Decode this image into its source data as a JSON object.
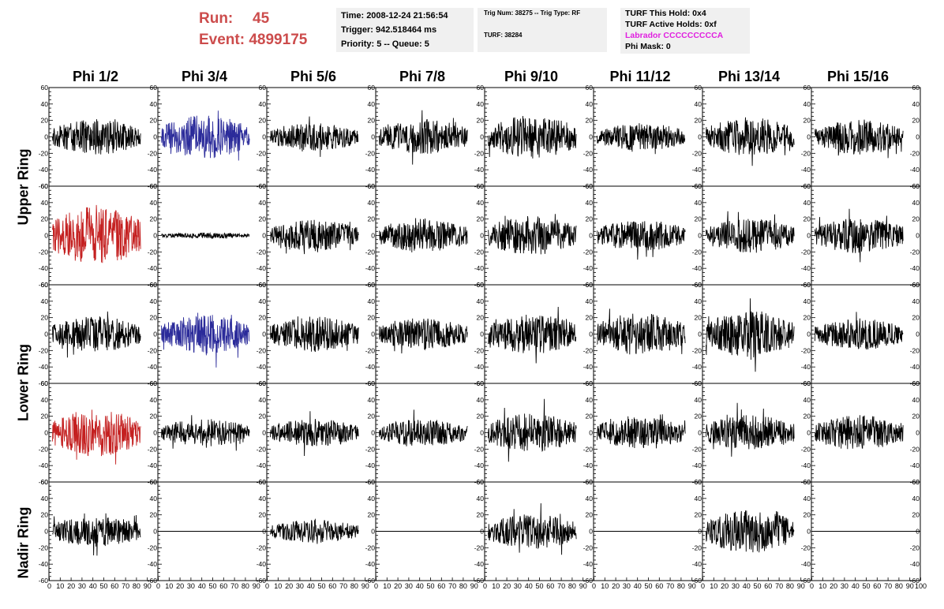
{
  "run": {
    "run_label": "Run:",
    "run_value": "45",
    "event_label": "Event:",
    "event_value": "4899175"
  },
  "info_time": {
    "time": "Time: 2008-12-24 21:56:54",
    "trigger": "Trigger: 942.518464 ms",
    "priority": "Priority: 5 -- Queue: 5"
  },
  "info_trig": {
    "line1": "Trig Num: 38275 -- Trig Type: RF",
    "line2": "TURF: 38284"
  },
  "info_turf": {
    "hold": "TURF This Hold: 0x4",
    "active": "TURF Active Holds: 0xf",
    "labrador": "Labrador CCCCCCCCCA",
    "phimask": "Phi Mask: 0"
  },
  "colors": {
    "black": "#000000",
    "blue": "#2b2b9a",
    "red": "#c42020",
    "labrador": "#e020e0",
    "run_text": "#cc4c4c"
  },
  "chart_data": {
    "type": "line",
    "x_range": [
      0,
      100
    ],
    "y_range": [
      -60,
      60
    ],
    "y_ticks": [
      "60",
      "40",
      "20",
      "0",
      "-20",
      "-40",
      "-60"
    ],
    "x_ticks": [
      "0",
      "10",
      "20",
      "30",
      "40",
      "50",
      "60",
      "70",
      "80",
      "90",
      "100"
    ],
    "columns": [
      "Phi 1/2",
      "Phi 3/4",
      "Phi 5/6",
      "Phi 7/8",
      "Phi 9/10",
      "Phi 11/12",
      "Phi 13/14",
      "Phi 15/16"
    ],
    "rings": [
      "Upper Ring",
      "Lower Ring",
      "Nadir Ring"
    ],
    "rows": [
      {
        "ring": "Upper Ring",
        "panels": [
          {
            "color": "black",
            "amplitude": 18,
            "seed": 11
          },
          {
            "color": "blue",
            "amplitude": 22,
            "seed": 12
          },
          {
            "color": "black",
            "amplitude": 14,
            "seed": 13
          },
          {
            "color": "black",
            "amplitude": 18,
            "seed": 14
          },
          {
            "color": "black",
            "amplitude": 22,
            "seed": 15
          },
          {
            "color": "black",
            "amplitude": 14,
            "seed": 16
          },
          {
            "color": "black",
            "amplitude": 20,
            "seed": 17
          },
          {
            "color": "black",
            "amplitude": 18,
            "seed": 18
          }
        ]
      },
      {
        "ring": "Upper Ring",
        "panels": [
          {
            "color": "red",
            "amplitude": 30,
            "seed": 21
          },
          {
            "color": "black",
            "amplitude": 3,
            "seed": 22
          },
          {
            "color": "black",
            "amplitude": 16,
            "seed": 23
          },
          {
            "color": "black",
            "amplitude": 18,
            "seed": 24
          },
          {
            "color": "black",
            "amplitude": 20,
            "seed": 25
          },
          {
            "color": "black",
            "amplitude": 16,
            "seed": 26
          },
          {
            "color": "black",
            "amplitude": 18,
            "seed": 27
          },
          {
            "color": "black",
            "amplitude": 18,
            "seed": 28
          }
        ]
      },
      {
        "ring": "Lower Ring",
        "panels": [
          {
            "color": "black",
            "amplitude": 18,
            "seed": 31
          },
          {
            "color": "blue",
            "amplitude": 20,
            "seed": 32
          },
          {
            "color": "black",
            "amplitude": 18,
            "seed": 33
          },
          {
            "color": "black",
            "amplitude": 16,
            "seed": 34
          },
          {
            "color": "black",
            "amplitude": 20,
            "seed": 35
          },
          {
            "color": "black",
            "amplitude": 22,
            "seed": 36
          },
          {
            "color": "black",
            "amplitude": 24,
            "seed": 37
          },
          {
            "color": "black",
            "amplitude": 16,
            "seed": 38
          }
        ]
      },
      {
        "ring": "Lower Ring",
        "panels": [
          {
            "color": "red",
            "amplitude": 24,
            "seed": 41
          },
          {
            "color": "black",
            "amplitude": 14,
            "seed": 42
          },
          {
            "color": "black",
            "amplitude": 14,
            "seed": 43
          },
          {
            "color": "black",
            "amplitude": 14,
            "seed": 44
          },
          {
            "color": "black",
            "amplitude": 20,
            "seed": 45
          },
          {
            "color": "black",
            "amplitude": 16,
            "seed": 46
          },
          {
            "color": "black",
            "amplitude": 18,
            "seed": 47
          },
          {
            "color": "black",
            "amplitude": 18,
            "seed": 48
          }
        ]
      },
      {
        "ring": "Nadir Ring",
        "panels": [
          {
            "color": "black",
            "amplitude": 16,
            "seed": 51
          },
          {
            "color": "black",
            "amplitude": 0,
            "seed": 52
          },
          {
            "color": "black",
            "amplitude": 12,
            "seed": 53
          },
          {
            "color": "black",
            "amplitude": 0,
            "seed": 54
          },
          {
            "color": "black",
            "amplitude": 18,
            "seed": 55
          },
          {
            "color": "black",
            "amplitude": 0,
            "seed": 56
          },
          {
            "color": "black",
            "amplitude": 22,
            "seed": 57
          },
          {
            "color": "black",
            "amplitude": 0,
            "seed": 58
          }
        ]
      }
    ]
  }
}
